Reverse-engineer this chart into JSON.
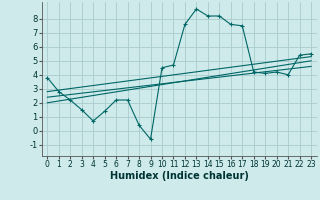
{
  "bg_color": "#ceeaea",
  "grid_color": "#aacccc",
  "line_color": "#006666",
  "marker_color": "#006666",
  "xlabel": "Humidex (Indice chaleur)",
  "xlabel_fontsize": 7,
  "tick_fontsize": 5.5,
  "xlim": [
    -0.5,
    23.5
  ],
  "ylim": [
    -1.8,
    9.2
  ],
  "xticks": [
    0,
    1,
    2,
    3,
    4,
    5,
    6,
    7,
    8,
    9,
    10,
    11,
    12,
    13,
    14,
    15,
    16,
    17,
    18,
    19,
    20,
    21,
    22,
    23
  ],
  "yticks": [
    -1,
    0,
    1,
    2,
    3,
    4,
    5,
    6,
    7,
    8
  ],
  "curve1_x": [
    0,
    1,
    2,
    3,
    4,
    5,
    6,
    7,
    8,
    9,
    10,
    11,
    12,
    13,
    14,
    15,
    16,
    17,
    18,
    19,
    20,
    21,
    22,
    23
  ],
  "curve1_y": [
    3.8,
    2.8,
    2.2,
    1.5,
    0.7,
    1.4,
    2.2,
    2.2,
    0.4,
    -0.6,
    4.5,
    4.7,
    7.6,
    8.7,
    8.2,
    8.2,
    7.6,
    7.5,
    4.2,
    4.1,
    4.2,
    4.0,
    5.4,
    5.5
  ],
  "reg_line1": [
    [
      0,
      23
    ],
    [
      2.0,
      5.0
    ]
  ],
  "reg_line2": [
    [
      0,
      23
    ],
    [
      2.4,
      4.6
    ]
  ],
  "reg_line3": [
    [
      0,
      23
    ],
    [
      2.8,
      5.3
    ]
  ]
}
